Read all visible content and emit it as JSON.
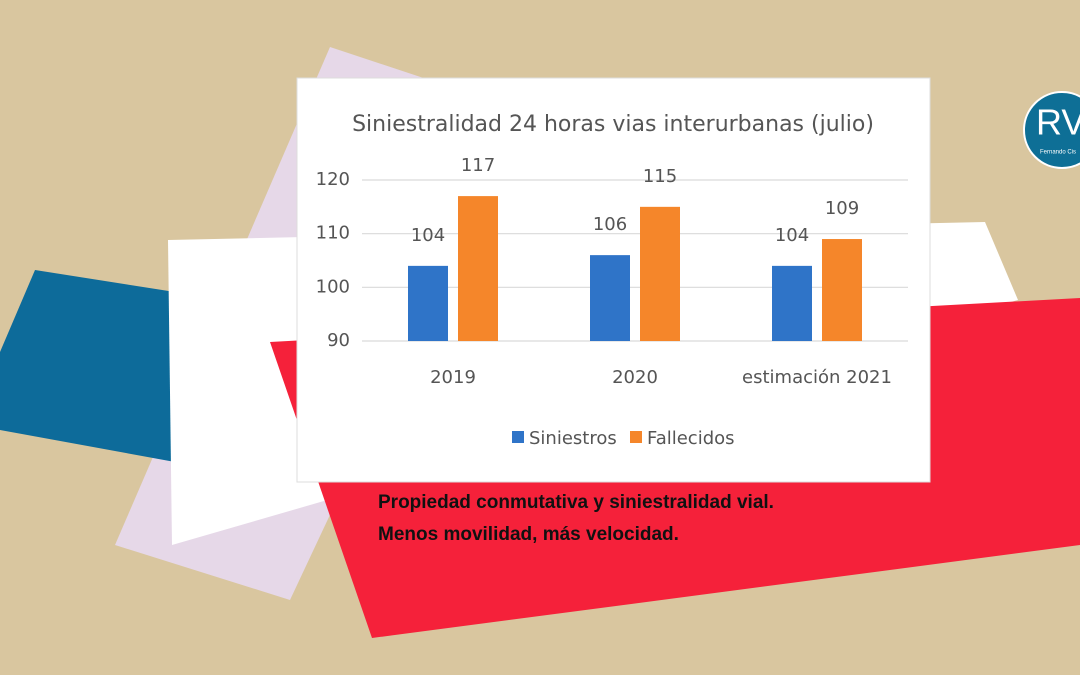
{
  "chart_data": {
    "type": "bar",
    "title": "Siniestralidad 24 horas vias interurbanas (julio)",
    "categories": [
      "2019",
      "2020",
      "estimación 2021"
    ],
    "series": [
      {
        "name": "Siniestros",
        "color": "#2f74c8",
        "values": [
          104,
          106,
          104
        ]
      },
      {
        "name": "Fallecidos",
        "color": "#f5862a",
        "values": [
          117,
          115,
          109
        ]
      }
    ],
    "ylim": [
      90,
      120
    ],
    "yticks": [
      90,
      100,
      110,
      120
    ],
    "grid": true,
    "legend": "bottom"
  },
  "caption": [
    "Propiedad conmutativa y siniestralidad vial.",
    "Menos movilidad, más velocidad."
  ],
  "logo": {
    "initials": "RV",
    "name": "Fernando Cis"
  }
}
